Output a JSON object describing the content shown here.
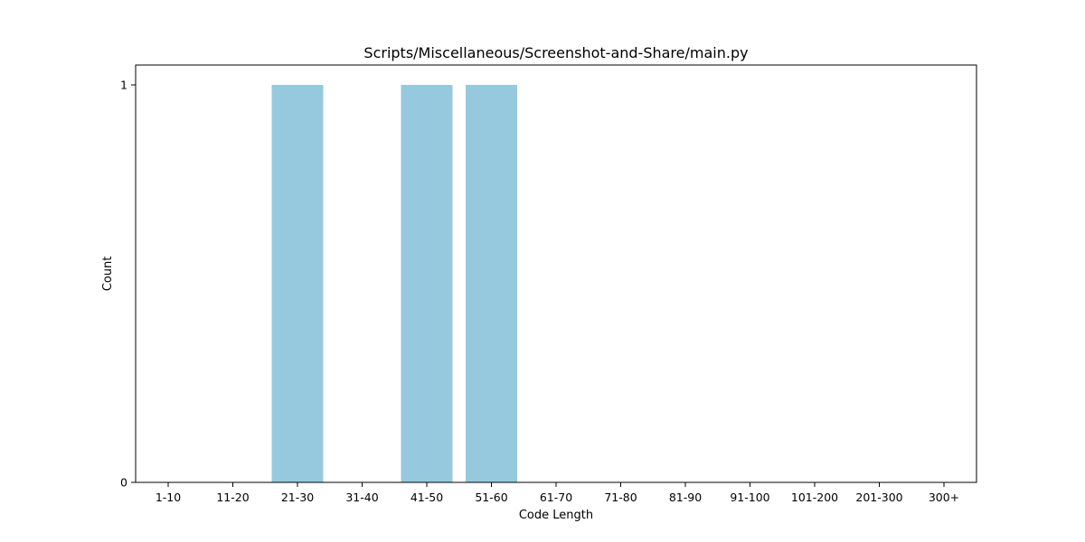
{
  "chart_data": {
    "type": "bar",
    "title": "Scripts/Miscellaneous/Screenshot-and-Share/main.py",
    "xlabel": "Code Length",
    "ylabel": "Count",
    "categories": [
      "1-10",
      "11-20",
      "21-30",
      "31-40",
      "41-50",
      "51-60",
      "61-70",
      "71-80",
      "81-90",
      "91-100",
      "101-200",
      "201-300",
      "300+"
    ],
    "values": [
      0,
      0,
      1,
      0,
      1,
      1,
      0,
      0,
      0,
      0,
      0,
      0,
      0
    ],
    "yticks": [
      0,
      1
    ],
    "ylim": [
      0,
      1.05
    ],
    "bar_color": "#96c9dd",
    "grid": false,
    "legend": false
  }
}
